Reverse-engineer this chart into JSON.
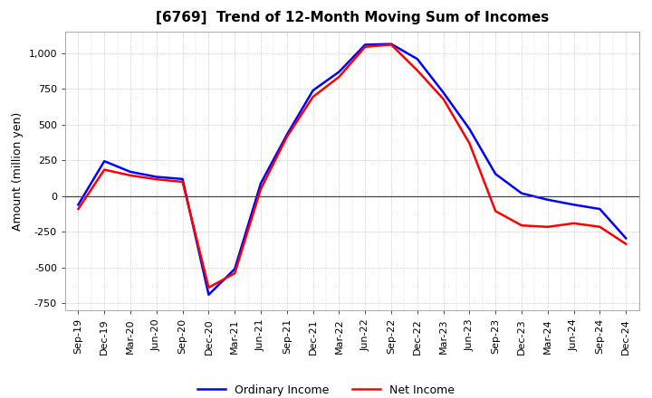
{
  "title": "[6769]  Trend of 12-Month Moving Sum of Incomes",
  "ylabel": "Amount (million yen)",
  "ylim": [
    -800,
    1150
  ],
  "yticks": [
    -750,
    -500,
    -250,
    0,
    250,
    500,
    750,
    1000
  ],
  "x_labels": [
    "Sep-19",
    "Dec-19",
    "Mar-20",
    "Jun-20",
    "Sep-20",
    "Dec-20",
    "Mar-21",
    "Jun-21",
    "Sep-21",
    "Dec-21",
    "Mar-22",
    "Jun-22",
    "Sep-22",
    "Dec-22",
    "Mar-23",
    "Jun-23",
    "Sep-23",
    "Dec-23",
    "Mar-24",
    "Jun-24",
    "Sep-24",
    "Dec-24"
  ],
  "ordinary_income": [
    -60,
    245,
    170,
    135,
    120,
    -690,
    -510,
    90,
    430,
    740,
    870,
    1060,
    1065,
    960,
    725,
    470,
    155,
    20,
    -25,
    -60,
    -90,
    -295
  ],
  "net_income": [
    -90,
    185,
    145,
    118,
    100,
    -640,
    -540,
    50,
    415,
    695,
    835,
    1045,
    1060,
    880,
    680,
    370,
    -105,
    -205,
    -215,
    -190,
    -215,
    -335
  ],
  "ordinary_color": "#0000ff",
  "net_color": "#ff0000",
  "line_width": 1.8,
  "background_color": "#ffffff",
  "grid_color": "#aaaaaa",
  "legend_ordinary": "Ordinary Income",
  "legend_net": "Net Income",
  "title_fontsize": 11,
  "ylabel_fontsize": 9,
  "tick_fontsize": 8
}
